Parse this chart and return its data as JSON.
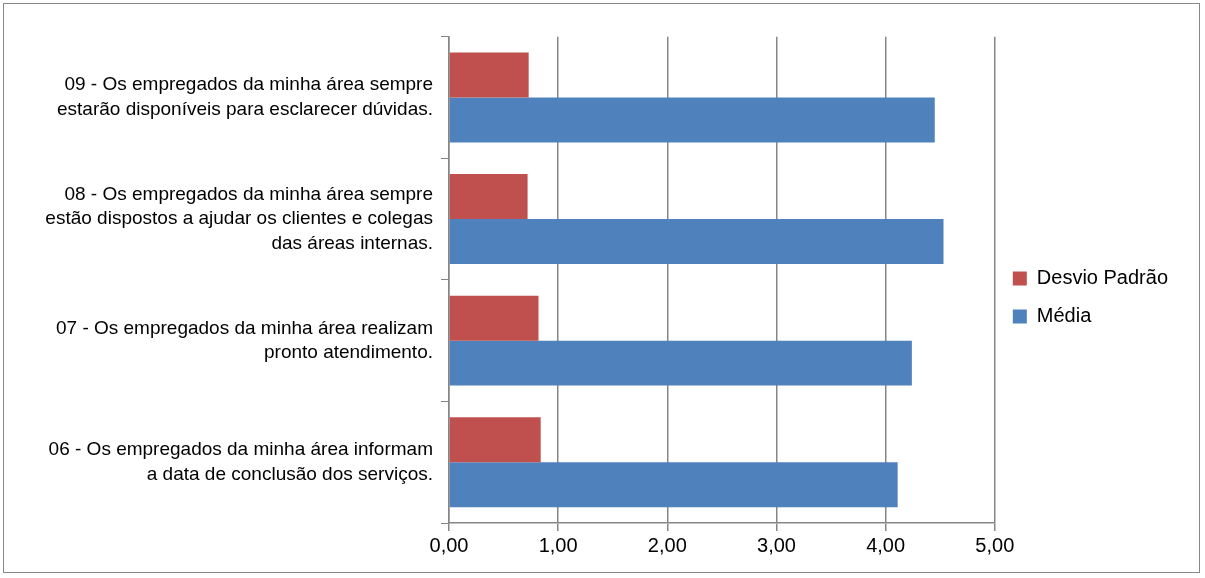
{
  "chart_data": {
    "type": "bar",
    "orientation": "horizontal",
    "categories": [
      "09 - Os empregados da minha área sempre estarão disponíveis para esclarecer dúvidas.",
      "08 - Os empregados da minha área sempre estão dispostos a ajudar os clientes e colegas das áreas internas.",
      "07 - Os empregados da minha área realizam pronto atendimento.",
      "06 - Os empregados da minha área informam a data de conclusão dos serviços."
    ],
    "series": [
      {
        "name": "Desvio Padrão",
        "color": "#c0504d",
        "values": [
          0.73,
          0.72,
          0.82,
          0.84
        ]
      },
      {
        "name": "Média",
        "color": "#4f81bd",
        "values": [
          4.45,
          4.53,
          4.24,
          4.11
        ]
      }
    ],
    "xlim": [
      0,
      5
    ],
    "xticks": [
      {
        "value": 0,
        "label": "0,00"
      },
      {
        "value": 1,
        "label": "1,00"
      },
      {
        "value": 2,
        "label": "2,00"
      },
      {
        "value": 3,
        "label": "3,00"
      },
      {
        "value": 4,
        "label": "4,00"
      },
      {
        "value": 5,
        "label": "5,00"
      }
    ],
    "grid": "x",
    "legend": "right"
  }
}
